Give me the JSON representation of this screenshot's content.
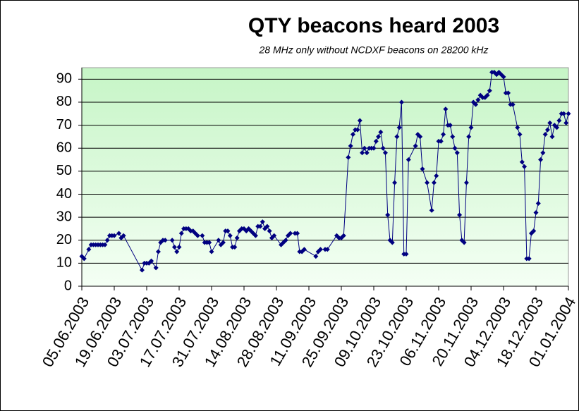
{
  "chart_data": {
    "type": "line",
    "title": "QTY beacons heard 2003",
    "subtitle": "28 MHz only without NCDXF beacons on 28200 kHz",
    "x": [
      "05.06.2003",
      "06.06.2003",
      "08.06.2003",
      "09.06.2003",
      "10.06.2003",
      "11.06.2003",
      "12.06.2003",
      "13.06.2003",
      "14.06.2003",
      "15.06.2003",
      "16.06.2003",
      "17.06.2003",
      "18.06.2003",
      "19.06.2003",
      "21.06.2003",
      "22.06.2003",
      "23.06.2003",
      "01.07.2003",
      "02.07.2003",
      "03.07.2003",
      "04.07.2003",
      "05.07.2003",
      "07.07.2003",
      "08.07.2003",
      "09.07.2003",
      "10.07.2003",
      "11.07.2003",
      "14.07.2003",
      "15.07.2003",
      "16.07.2003",
      "17.07.2003",
      "18.07.2003",
      "19.07.2003",
      "20.07.2003",
      "21.07.2003",
      "22.07.2003",
      "23.07.2003",
      "24.07.2003",
      "25.07.2003",
      "27.07.2003",
      "28.07.2003",
      "29.07.2003",
      "30.07.2003",
      "31.07.2003",
      "03.08.2003",
      "04.08.2003",
      "05.08.2003",
      "06.08.2003",
      "07.08.2003",
      "08.08.2003",
      "09.08.2003",
      "10.08.2003",
      "11.08.2003",
      "12.08.2003",
      "13.08.2003",
      "14.08.2003",
      "15.08.2003",
      "16.08.2003",
      "17.08.2003",
      "18.08.2003",
      "19.08.2003",
      "20.08.2003",
      "21.08.2003",
      "22.08.2003",
      "23.08.2003",
      "24.08.2003",
      "25.08.2003",
      "26.08.2003",
      "27.08.2003",
      "30.08.2003",
      "31.08.2003",
      "01.09.2003",
      "02.09.2003",
      "03.09.2003",
      "05.09.2003",
      "06.09.2003",
      "07.09.2003",
      "08.09.2003",
      "09.09.2003",
      "14.09.2003",
      "15.09.2003",
      "16.09.2003",
      "18.09.2003",
      "19.09.2003",
      "23.09.2003",
      "24.09.2003",
      "25.09.2003",
      "26.09.2003",
      "28.09.2003",
      "29.09.2003",
      "30.09.2003",
      "01.10.2003",
      "02.10.2003",
      "03.10.2003",
      "04.10.2003",
      "05.10.2003",
      "06.10.2003",
      "07.10.2003",
      "08.10.2003",
      "09.10.2003",
      "10.10.2003",
      "11.10.2003",
      "12.10.2003",
      "13.10.2003",
      "14.10.2003",
      "15.10.2003",
      "16.10.2003",
      "17.10.2003",
      "18.10.2003",
      "19.10.2003",
      "20.10.2003",
      "21.10.2003",
      "22.10.2003",
      "23.10.2003",
      "24.10.2003",
      "27.10.2003",
      "28.10.2003",
      "29.10.2003",
      "30.10.2003",
      "01.11.2003",
      "03.11.2003",
      "04.11.2003",
      "05.11.2003",
      "06.11.2003",
      "07.11.2003",
      "08.11.2003",
      "09.11.2003",
      "10.11.2003",
      "11.11.2003",
      "12.11.2003",
      "13.11.2003",
      "14.11.2003",
      "15.11.2003",
      "16.11.2003",
      "17.11.2003",
      "18.11.2003",
      "19.11.2003",
      "20.11.2003",
      "21.11.2003",
      "22.11.2003",
      "23.11.2003",
      "24.11.2003",
      "25.11.2003",
      "26.11.2003",
      "27.11.2003",
      "28.11.2003",
      "29.11.2003",
      "30.11.2003",
      "01.12.2003",
      "02.12.2003",
      "03.12.2003",
      "04.12.2003",
      "05.12.2003",
      "06.12.2003",
      "07.12.2003",
      "08.12.2003",
      "10.12.2003",
      "11.12.2003",
      "12.12.2003",
      "13.12.2003",
      "14.12.2003",
      "15.12.2003",
      "16.12.2003",
      "17.12.2003",
      "18.12.2003",
      "19.12.2003",
      "20.12.2003",
      "21.12.2003",
      "22.12.2003",
      "23.12.2003",
      "24.12.2003",
      "25.12.2003",
      "26.12.2003",
      "27.12.2003",
      "28.12.2003",
      "29.12.2003",
      "30.12.2003",
      "31.12.2003",
      "01.01.2004"
    ],
    "series": [
      {
        "name": "QTY",
        "color": "#000080",
        "values": [
          13,
          12,
          16,
          18,
          18,
          18,
          18,
          18,
          18,
          18,
          20,
          22,
          22,
          22,
          23,
          21,
          22,
          7,
          10,
          10,
          10,
          11,
          8,
          15,
          19,
          20,
          20,
          20,
          17,
          15,
          17,
          23,
          25,
          25,
          25,
          24,
          24,
          23,
          22,
          22,
          19,
          19,
          19,
          15,
          20,
          18,
          19,
          24,
          24,
          22,
          17,
          17,
          21,
          24,
          25,
          25,
          24,
          25,
          24,
          23,
          22,
          26,
          26,
          28,
          25,
          26,
          24,
          21,
          22,
          18,
          19,
          20,
          22,
          23,
          23,
          23,
          15,
          15,
          16,
          13,
          15,
          16,
          16,
          16,
          22,
          21,
          21,
          22,
          56,
          61,
          66,
          68,
          68,
          72,
          58,
          60,
          58,
          60,
          60,
          60,
          63,
          65,
          67,
          60,
          58,
          31,
          20,
          19,
          45,
          65,
          69,
          80,
          14,
          14,
          55,
          61,
          66,
          65,
          51,
          45,
          33,
          45,
          48,
          63,
          63,
          66,
          77,
          70,
          70,
          65,
          60,
          58,
          31,
          20,
          19,
          45,
          65,
          69,
          80,
          79,
          81,
          83,
          82,
          82,
          83,
          85,
          93,
          93,
          92,
          93,
          92,
          91,
          84,
          84,
          79,
          79,
          69,
          66,
          54,
          52,
          12,
          12,
          23,
          24,
          32,
          36,
          55,
          58,
          66,
          68,
          71,
          65,
          70,
          69,
          72,
          75,
          75,
          71,
          75
        ]
      }
    ],
    "xlim": [
      "05.06.2003",
      "01.01.2004"
    ],
    "xticks": [
      "05.06.2003",
      "19.06.2003",
      "03.07.2003",
      "17.07.2003",
      "31.07.2003",
      "14.08.2003",
      "28.08.2003",
      "11.09.2003",
      "25.09.2003",
      "09.10.2003",
      "23.10.2003",
      "06.11.2003",
      "20.11.2003",
      "04.12.2003",
      "18.12.2003",
      "01.01.2004"
    ],
    "ylim": [
      0,
      95
    ],
    "yticks": [
      0,
      10,
      20,
      30,
      40,
      50,
      60,
      70,
      80,
      90
    ],
    "grid": true
  }
}
